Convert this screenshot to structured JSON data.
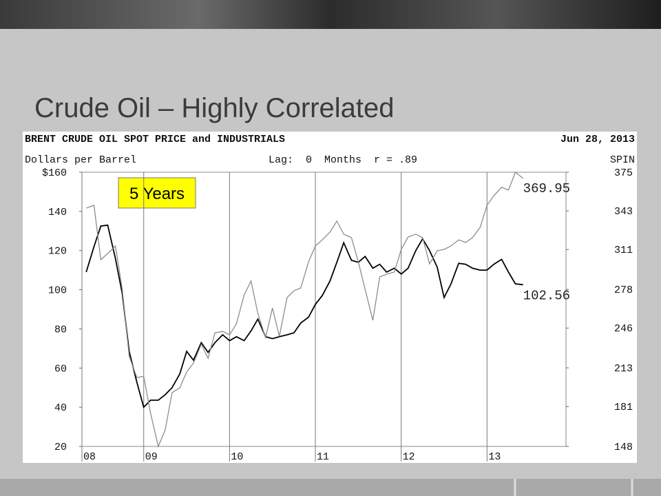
{
  "slide": {
    "title": "Crude Oil – Highly Correlated"
  },
  "chart_data": {
    "type": "line",
    "title": "BRENT CRUDE OIL SPOT PRICE and INDUSTRIALS",
    "date": "Jun 28, 2013",
    "ylabel": "Dollars per Barrel",
    "subtitle": "Lag:  0  Months  r = .89",
    "y2label": "SPIN",
    "annotation": "5 Years",
    "x": [
      8.33,
      8.42,
      8.5,
      8.58,
      8.67,
      8.75,
      8.83,
      8.92,
      9,
      9.08,
      9.17,
      9.25,
      9.33,
      9.42,
      9.5,
      9.58,
      9.67,
      9.75,
      9.83,
      9.92,
      10,
      10.08,
      10.17,
      10.25,
      10.33,
      10.42,
      10.5,
      10.58,
      10.67,
      10.75,
      10.83,
      10.92,
      11,
      11.08,
      11.17,
      11.25,
      11.33,
      11.42,
      11.5,
      11.58,
      11.67,
      11.75,
      11.83,
      11.92,
      12,
      12.08,
      12.17,
      12.25,
      12.33,
      12.42,
      12.5,
      12.58,
      12.67,
      12.75,
      12.83,
      12.92,
      13,
      13.08,
      13.17,
      13.25,
      13.33,
      13.42
    ],
    "series": [
      {
        "color": "#000000",
        "axis": "y",
        "values": [
          109,
          122,
          132.5,
          133,
          116,
          98,
          68.5,
          52.7,
          40,
          43.6,
          43.6,
          46.4,
          50,
          57,
          68.5,
          64,
          73,
          68,
          73,
          77,
          74,
          76,
          74,
          79,
          85,
          76,
          75,
          76,
          77,
          78,
          83,
          86,
          92.5,
          97,
          104.4,
          114,
          124,
          115,
          114,
          117,
          111,
          113,
          109,
          111,
          108,
          111,
          120,
          126,
          120,
          111.5,
          96,
          103,
          113.5,
          113,
          111,
          110,
          110,
          113,
          115.5,
          109,
          103,
          102.56
        ]
      },
      {
        "color": "#8c8c8c",
        "axis": "y2",
        "values": [
          345.3,
          347.6,
          302.6,
          307.7,
          314,
          278,
          222.7,
          205,
          206,
          175.4,
          148,
          161.7,
          192.5,
          196.5,
          209.6,
          217,
          232.4,
          221,
          242,
          243.2,
          240.4,
          249.5,
          273.5,
          284.9,
          258,
          238,
          262.6,
          239.2,
          271.2,
          276.9,
          279.2,
          300.8,
          314,
          319,
          325.4,
          334.5,
          323.7,
          320.8,
          300.8,
          278,
          252.4,
          288.3,
          290.6,
          292.3,
          311.1,
          321.4,
          323.7,
          320.8,
          299.1,
          310,
          311.1,
          314,
          319,
          316.8,
          320.8,
          329.4,
          347.6,
          355.6,
          362.5,
          360.2,
          375,
          369.95
        ]
      }
    ],
    "xlim": [
      8.28,
      13.92
    ],
    "xticks": [
      {
        "value": 8.28,
        "label": "08"
      },
      {
        "value": 9,
        "label": "09"
      },
      10,
      11,
      12,
      13
    ],
    "ylim": [
      20,
      160
    ],
    "yticks": [
      20,
      40,
      60,
      80,
      100,
      120,
      140,
      {
        "value": 160,
        "label": "$160"
      }
    ],
    "y2lim": [
      148,
      375
    ],
    "y2ticks": [
      148,
      181,
      213,
      246,
      278,
      311,
      343,
      375
    ],
    "grid": true
  }
}
